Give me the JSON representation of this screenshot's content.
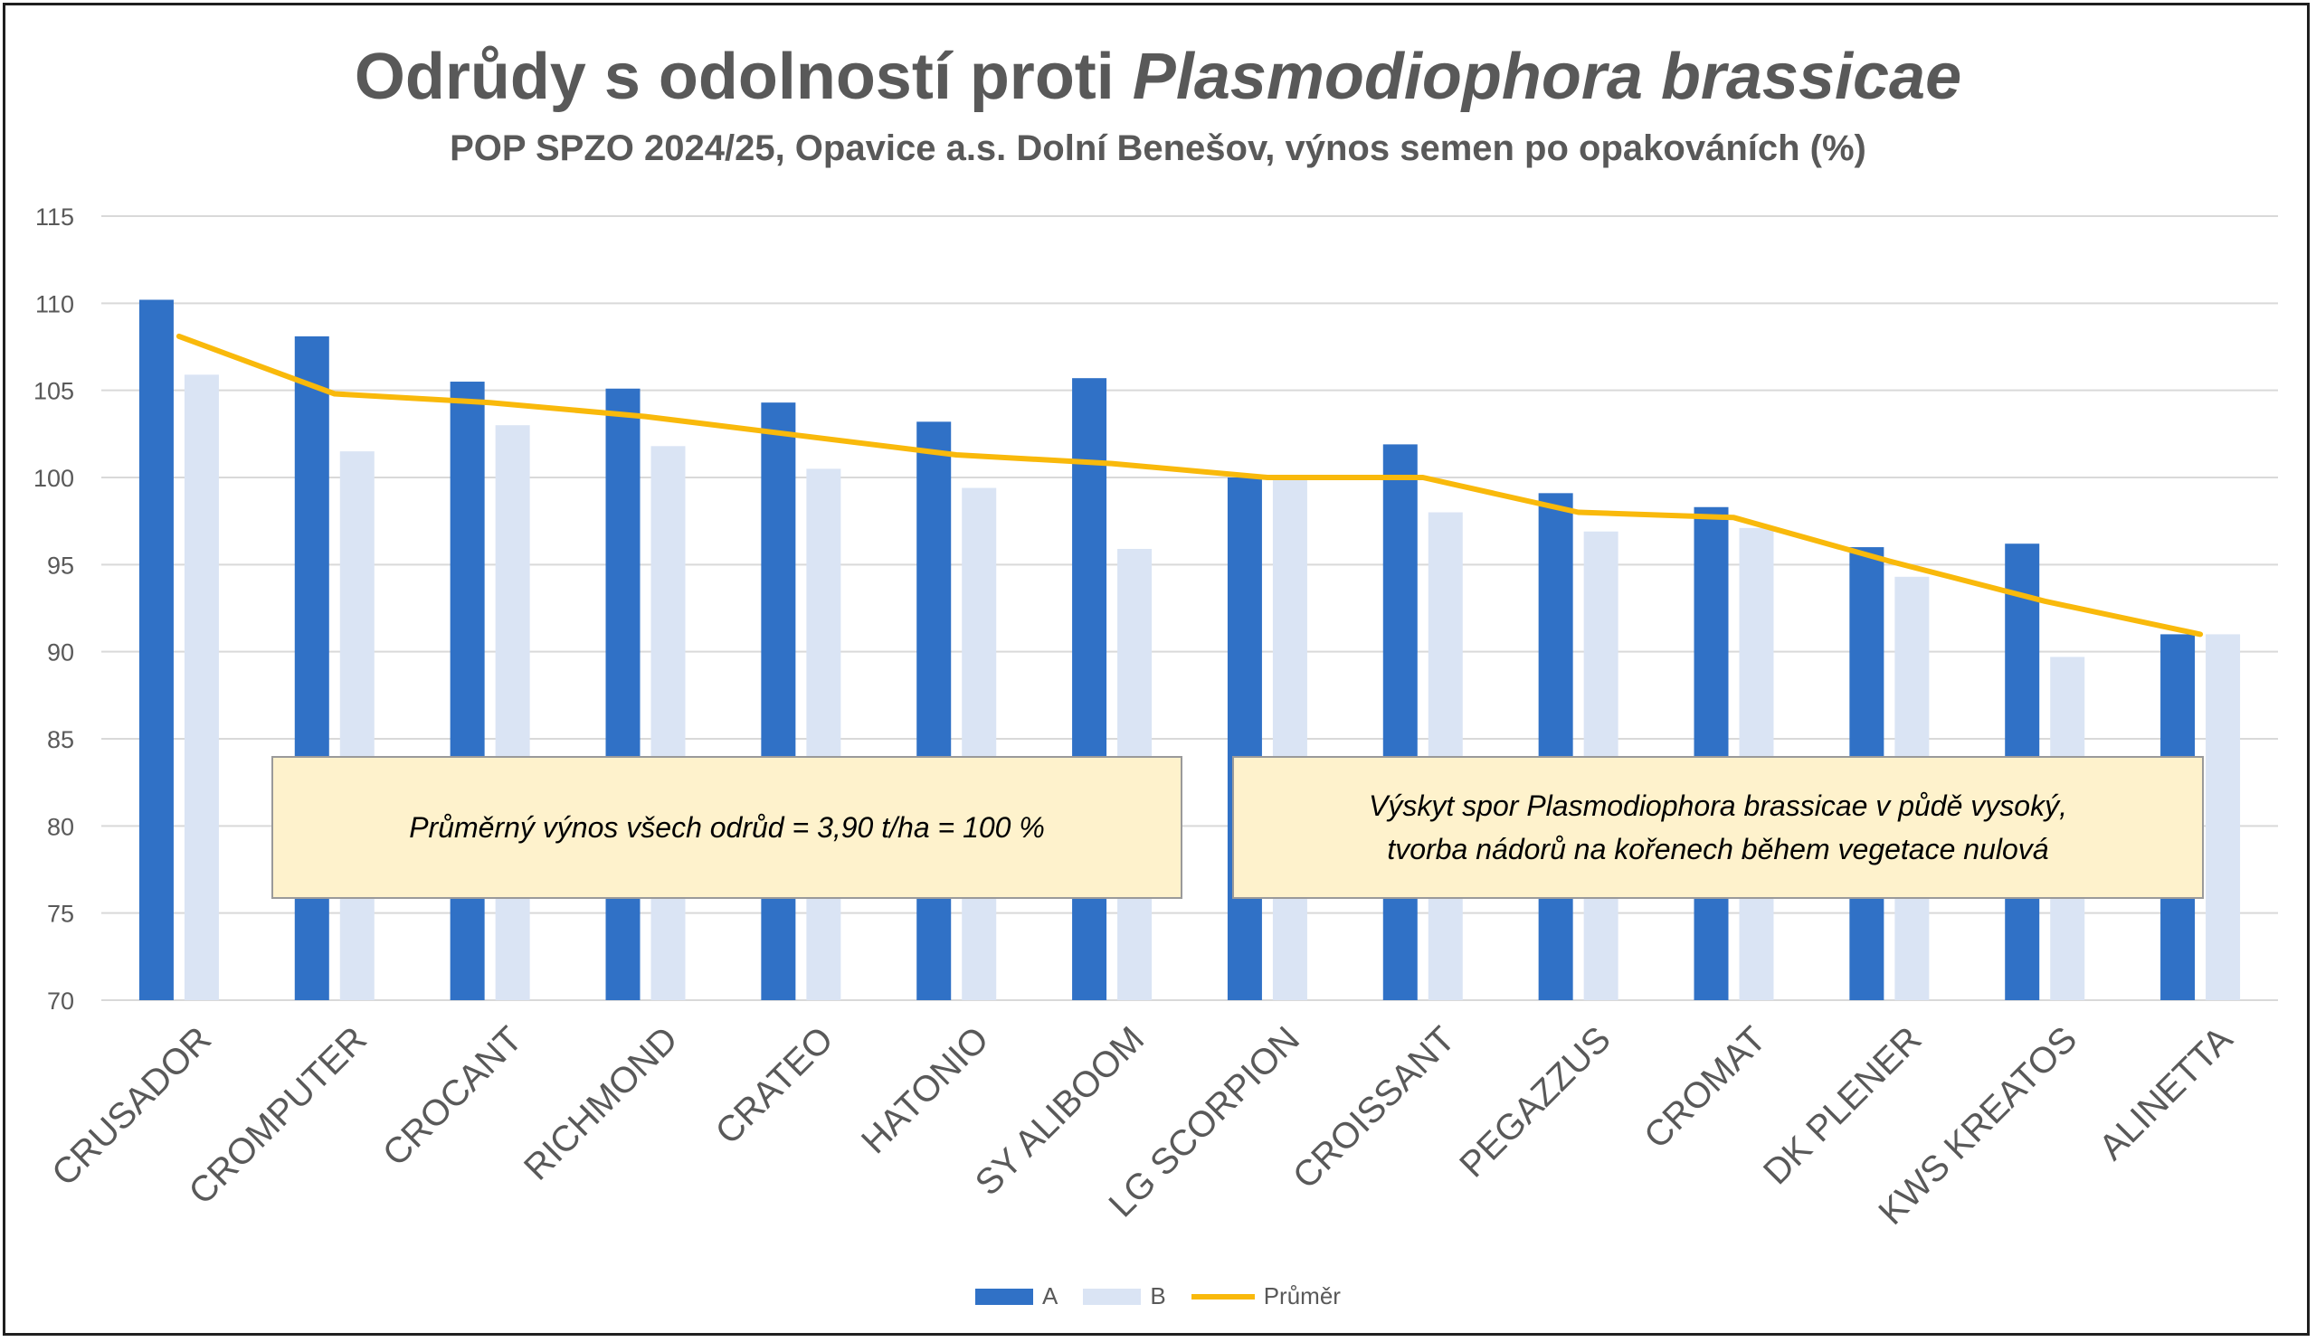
{
  "title_main": "Odrůdy s odolností proti ",
  "title_italic": "Plasmodiophora brassicae",
  "subtitle": "POP SPZO 2024/25, Opavice a.s. Dolní Benešov, výnos semen po opakováních (%)",
  "annotations": {
    "left": "Průměrný výnos všech odrůd = 3,90 t/ha = 100 %",
    "right_line1": "Výskyt spor Plasmodiophora brassicae v půdě vysoký,",
    "right_line2": "tvorba nádorů na kořenech během vegetace nulová"
  },
  "colors": {
    "A": "#3071c6",
    "B": "#dae4f4",
    "avg": "#f9b90b",
    "grid": "#d9d9d9",
    "text": "#595959"
  },
  "chart_data": {
    "type": "bar",
    "categories": [
      "CRUSADOR",
      "CROMPUTER",
      "CROCANT",
      "RICHMOND",
      "CRATEO",
      "HATONIO",
      "SY ALIBOOM",
      "LG SCORPION",
      "CROISSANT",
      "PEGAZZUS",
      "CROMAT",
      "DK PLENER",
      "KWS KREATOS",
      "ALINETTA"
    ],
    "series": [
      {
        "name": "A",
        "type": "bar",
        "values": [
          110.2,
          108.1,
          105.5,
          105.1,
          104.3,
          103.2,
          105.7,
          100.0,
          101.9,
          99.1,
          98.3,
          96.0,
          96.2,
          91.0
        ]
      },
      {
        "name": "B",
        "type": "bar",
        "values": [
          105.9,
          101.5,
          103.0,
          101.8,
          100.5,
          99.4,
          95.9,
          100.0,
          98.0,
          96.9,
          97.1,
          94.3,
          89.7,
          91.0
        ]
      },
      {
        "name": "Průměr",
        "type": "line",
        "values": [
          108.1,
          104.8,
          104.3,
          103.5,
          102.4,
          101.3,
          100.8,
          100.0,
          100.0,
          98.0,
          97.7,
          95.2,
          92.9,
          91.0
        ]
      }
    ],
    "ylim": [
      70,
      115
    ],
    "yticks": [
      70,
      75,
      80,
      85,
      90,
      95,
      100,
      105,
      110,
      115
    ],
    "grid": true,
    "legend": "bottom"
  }
}
